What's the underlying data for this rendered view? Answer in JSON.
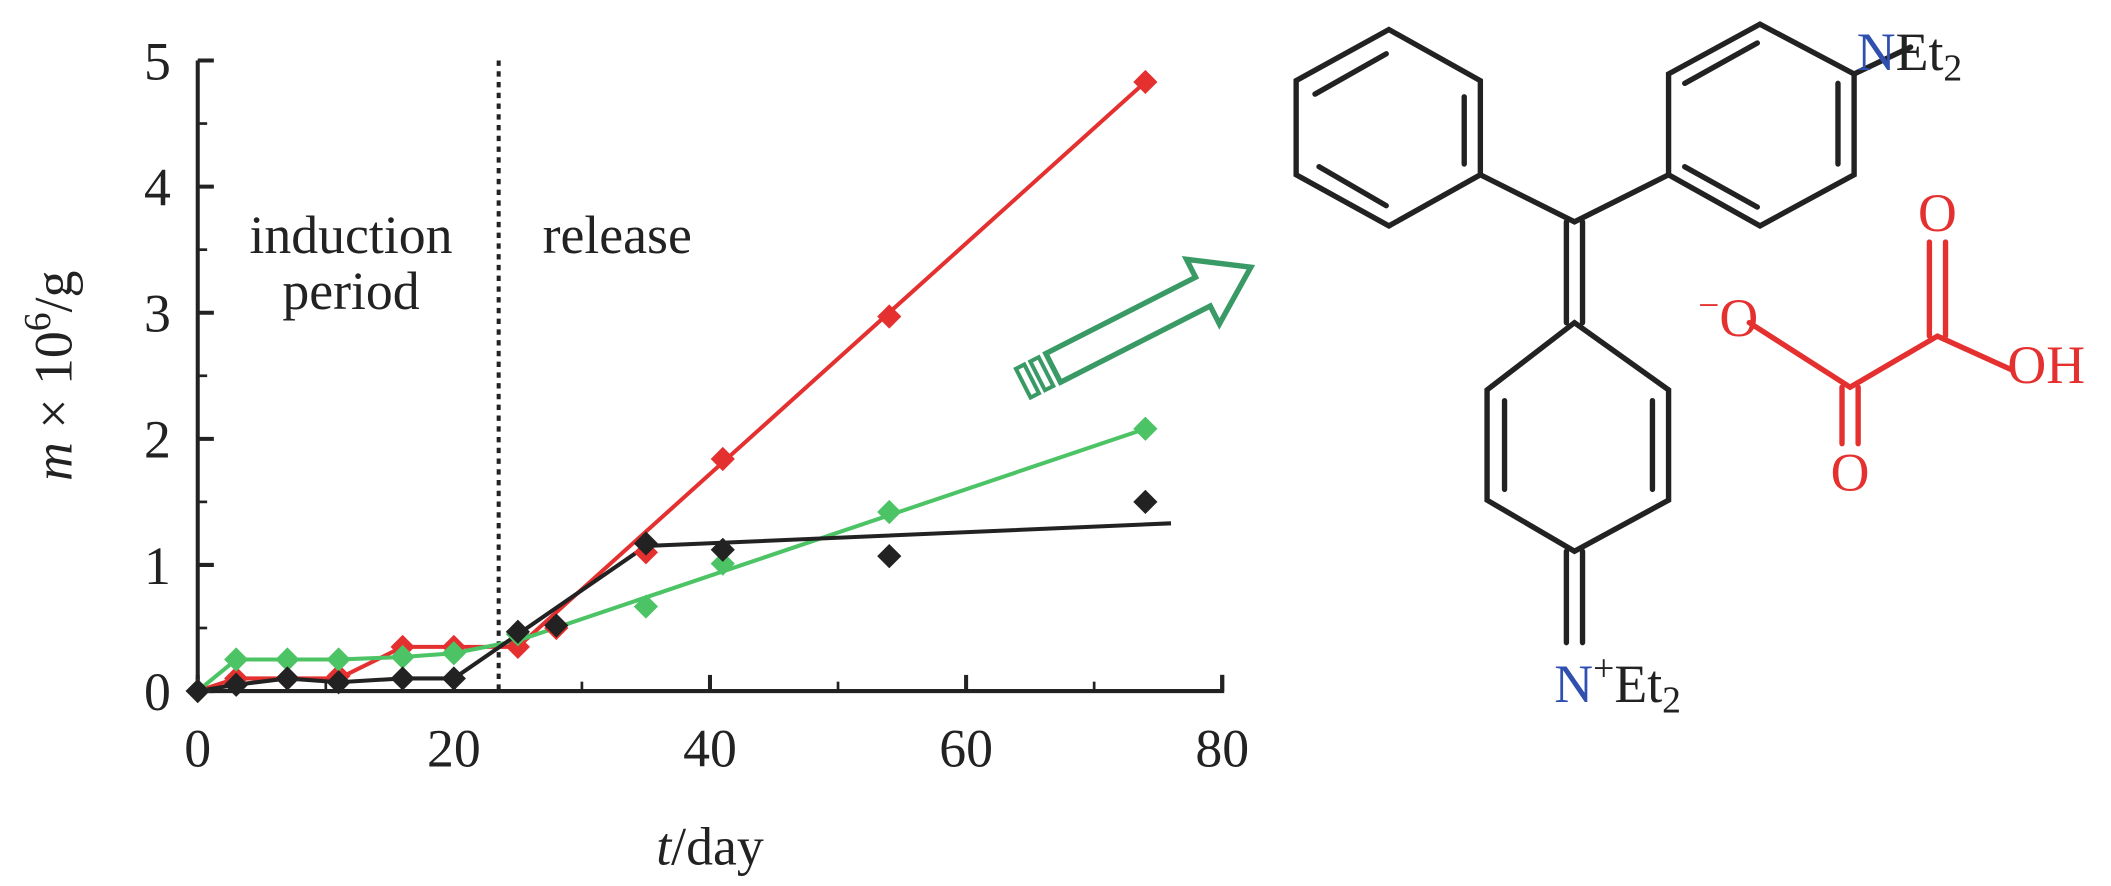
{
  "chart_data": {
    "type": "scatter",
    "x_label": {
      "symbol": "t",
      "unit": "/day"
    },
    "y_label": {
      "symbol": "m",
      "text": " × 10",
      "superscript": "6",
      "unit": "/g"
    },
    "annotations": [
      "induction",
      "period",
      "release"
    ],
    "divider_x": 23.5,
    "xlim": [
      0,
      80
    ],
    "xticks": [
      0,
      20,
      40,
      60,
      80
    ],
    "ylim": [
      0,
      5
    ],
    "yticks": [
      0,
      1,
      2,
      3,
      4,
      5
    ],
    "series": [
      {
        "color": "#e53030",
        "x": [
          0,
          3,
          7,
          11,
          16,
          20,
          25,
          28,
          35,
          41,
          54,
          74
        ],
        "values": [
          0,
          0.1,
          0.1,
          0.12,
          0.35,
          0.35,
          0.35,
          0.5,
          1.1,
          1.84,
          2.97,
          4.83
        ],
        "fit": {
          "x": [
            0,
            3,
            7,
            11,
            16,
            20,
            25,
            74
          ],
          "values": [
            0,
            0.1,
            0.1,
            0.1,
            0.35,
            0.35,
            0.35,
            4.83
          ]
        }
      },
      {
        "color": "#4cc466",
        "x": [
          0,
          3,
          7,
          11,
          16,
          20,
          25,
          35,
          41,
          54,
          74
        ],
        "values": [
          0,
          0.25,
          0.25,
          0.25,
          0.27,
          0.3,
          0.45,
          0.67,
          1.01,
          1.42,
          2.08
        ],
        "fit": {
          "x": [
            0,
            3,
            7,
            11,
            16,
            20,
            25,
            74
          ],
          "values": [
            0,
            0.25,
            0.25,
            0.25,
            0.27,
            0.3,
            0.4,
            2.08
          ]
        }
      },
      {
        "color": "#222222",
        "x": [
          0,
          3,
          7,
          11,
          16,
          20,
          25,
          28,
          35,
          41,
          54,
          74
        ],
        "values": [
          0,
          0.05,
          0.1,
          0.07,
          0.1,
          0.1,
          0.47,
          0.52,
          1.17,
          1.12,
          1.07,
          1.5
        ],
        "fit": {
          "x": [
            0,
            3,
            7,
            11,
            16,
            20,
            35,
            76
          ],
          "values": [
            0,
            0.05,
            0.1,
            0.07,
            0.1,
            0.1,
            1.15,
            1.33
          ]
        }
      }
    ]
  },
  "structure": {
    "amine": {
      "atom": "N",
      "group": "Et",
      "sub": "2"
    },
    "iminium": {
      "atom": "N",
      "charge": "+",
      "group": "Et",
      "sub": "2"
    },
    "oxalate": {
      "anion": "O",
      "anion_charge": "−",
      "carbonyl_top": "O",
      "carbonyl_bottom": "O",
      "hydroxyl": "OH"
    }
  }
}
